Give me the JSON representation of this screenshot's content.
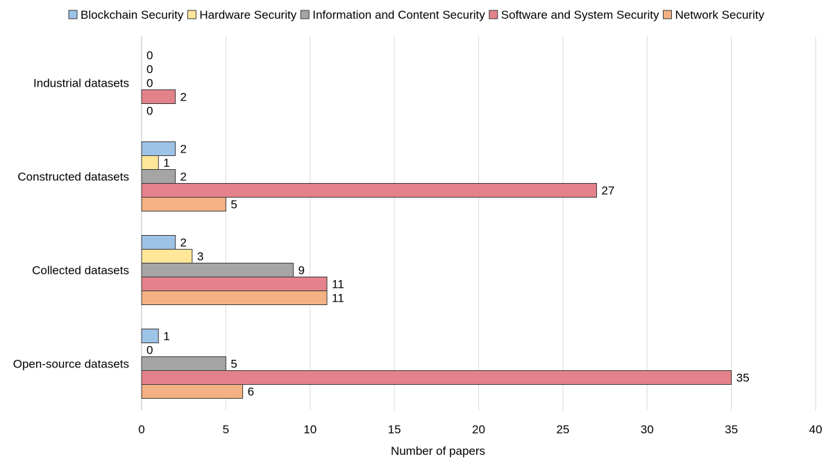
{
  "chart_data": {
    "type": "bar",
    "orientation": "horizontal",
    "categories": [
      "Industrial datasets",
      "Constructed datasets",
      "Collected datasets",
      "Open-source datasets"
    ],
    "series": [
      {
        "name": "Blockchain Security",
        "color": "#9dc3e6",
        "values": [
          0,
          2,
          2,
          1
        ]
      },
      {
        "name": "Hardware Security",
        "color": "#ffe699",
        "values": [
          0,
          1,
          3,
          0
        ]
      },
      {
        "name": "Information and Content Security",
        "color": "#a5a5a5",
        "values": [
          0,
          2,
          9,
          5
        ]
      },
      {
        "name": "Software and System Security",
        "color": "#e3828a",
        "values": [
          2,
          27,
          11,
          35
        ]
      },
      {
        "name": "Network Security",
        "color": "#f4b183",
        "values": [
          0,
          5,
          11,
          6
        ]
      }
    ],
    "xlabel": "Number of papers",
    "ylabel": "",
    "xlim": [
      0,
      40
    ],
    "xticks": [
      0,
      5,
      10,
      15,
      20,
      25,
      30,
      35,
      40
    ],
    "grid": "vertical",
    "legend": "top",
    "data_labels": true
  }
}
